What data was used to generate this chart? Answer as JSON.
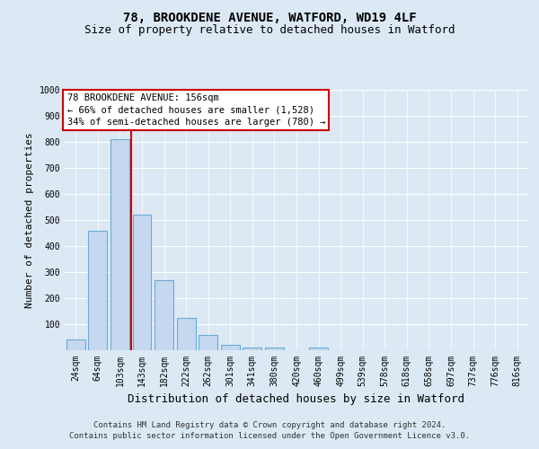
{
  "title_line1": "78, BROOKDENE AVENUE, WATFORD, WD19 4LF",
  "title_line2": "Size of property relative to detached houses in Watford",
  "xlabel": "Distribution of detached houses by size in Watford",
  "ylabel": "Number of detached properties",
  "footnote": "Contains HM Land Registry data © Crown copyright and database right 2024.\nContains public sector information licensed under the Open Government Licence v3.0.",
  "categories": [
    "24sqm",
    "64sqm",
    "103sqm",
    "143sqm",
    "182sqm",
    "222sqm",
    "262sqm",
    "301sqm",
    "341sqm",
    "380sqm",
    "420sqm",
    "460sqm",
    "499sqm",
    "539sqm",
    "578sqm",
    "618sqm",
    "658sqm",
    "697sqm",
    "737sqm",
    "776sqm",
    "816sqm"
  ],
  "values": [
    40,
    460,
    810,
    520,
    270,
    125,
    58,
    22,
    10,
    12,
    0,
    10,
    0,
    0,
    0,
    0,
    0,
    0,
    0,
    0,
    0
  ],
  "bar_color": "#c5d8f0",
  "bar_edge_color": "#6aabd2",
  "vline_x_index": 3,
  "vline_color": "#cc0000",
  "annotation_box_text": "78 BROOKDENE AVENUE: 156sqm\n← 66% of detached houses are smaller (1,528)\n34% of semi-detached houses are larger (780) →",
  "annotation_box_color": "#cc0000",
  "annotation_text_color": "#000000",
  "ylim": [
    0,
    1000
  ],
  "yticks": [
    0,
    100,
    200,
    300,
    400,
    500,
    600,
    700,
    800,
    900,
    1000
  ],
  "background_color": "#dce9f5",
  "plot_background_color": "#dce9f5",
  "grid_color": "#ffffff",
  "title1_fontsize": 10,
  "title2_fontsize": 9,
  "xlabel_fontsize": 9,
  "ylabel_fontsize": 8,
  "tick_fontsize": 7,
  "annotation_fontsize": 7.5,
  "footnote_fontsize": 6.5
}
